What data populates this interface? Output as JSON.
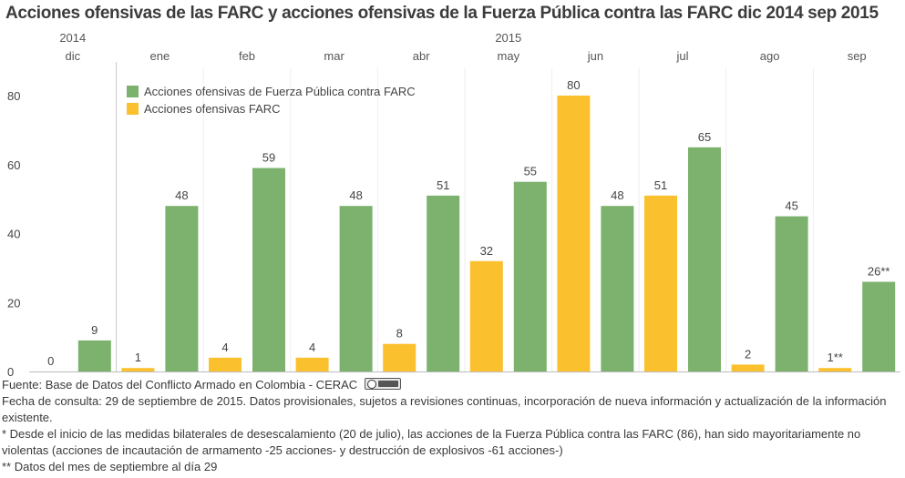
{
  "chart_data": {
    "type": "bar",
    "title": "Acciones ofensivas de las FARC y acciones ofensivas de la Fuerza Pública contra las FARC dic 2014 sep 2015",
    "years": [
      {
        "label": "2014",
        "month_index": 0
      },
      {
        "label": "2015",
        "month_index": 5
      }
    ],
    "categories": [
      "dic",
      "ene",
      "feb",
      "mar",
      "abr",
      "may",
      "jun",
      "jul",
      "ago",
      "sep"
    ],
    "series": [
      {
        "name": "Acciones ofensivas FARC",
        "color": "#fbc02d",
        "values": [
          0,
          1,
          4,
          4,
          8,
          32,
          80,
          51,
          2,
          1
        ],
        "labels": [
          "0",
          "1",
          "4",
          "4",
          "8",
          "32",
          "80",
          "51",
          "2",
          "1**"
        ]
      },
      {
        "name": "Acciones ofensivas de Fuerza Pública contra FARC",
        "color": "#7cb26d",
        "values": [
          9,
          48,
          59,
          48,
          51,
          55,
          48,
          65,
          45,
          26
        ],
        "labels": [
          "9",
          "48",
          "59",
          "48",
          "51",
          "55",
          "48",
          "65",
          "45",
          "26**"
        ]
      }
    ],
    "legend_order": [
      1,
      0
    ],
    "legend_position": "top-left",
    "yticks": [
      0,
      20,
      40,
      60,
      80
    ],
    "ylim": [
      0,
      85
    ],
    "xlabel": "",
    "ylabel": "",
    "grid": false
  },
  "notes": {
    "source": "Fuente: Base de Datos del Conflicto Armado en Colombia - CERAC",
    "consulta": "Fecha de consulta: 29 de septiembre de 2015. Datos provisionales, sujetos a revisiones continuas, incorporación de nueva información y actualización de la información existente.",
    "note1": "* Desde el inicio de las medidas bilaterales de desescalamiento (20 de julio), las acciones de la Fuerza Pública contra las FARC (86), han sido mayoritariamente no violentas (acciones de incautación de armamento -25 acciones- y destrucción de explosivos -61 acciones-)",
    "note2": "** Datos del mes de septiembre al día 29"
  }
}
